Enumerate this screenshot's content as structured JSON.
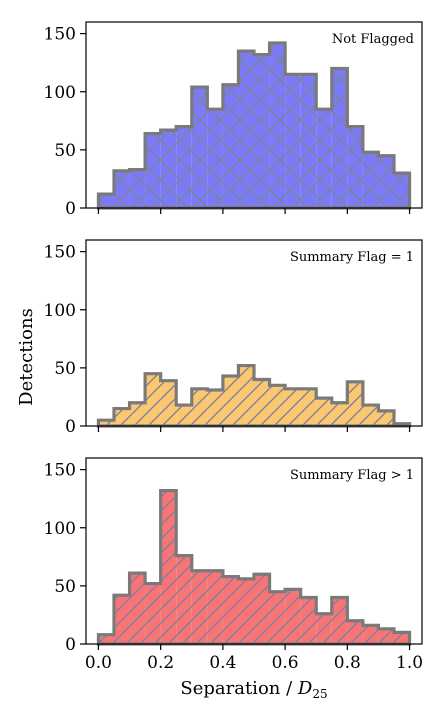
{
  "figure": {
    "ylabel": "Detections",
    "xlabel_main": "Separation / ",
    "xlabel_var": "D",
    "xlabel_sub": "25",
    "x_ticks": [
      "0.0",
      "0.2",
      "0.4",
      "0.6",
      "0.8",
      "1.0"
    ],
    "y_ticks": [
      "0",
      "50",
      "100",
      "150"
    ]
  },
  "colors": {
    "edge": "#7a7a7a",
    "hatch": "#8080a0",
    "panel1_fill": "#7b7bf7",
    "panel2_fill": "#fcc86f",
    "panel3_fill": "#f97575"
  },
  "chart_data": [
    {
      "type": "bar",
      "style": "step-histogram",
      "label": "Not Flagged",
      "hatch": "cross",
      "bin_edges": [
        0.0,
        0.05,
        0.1,
        0.15,
        0.2,
        0.25,
        0.3,
        0.35,
        0.4,
        0.45,
        0.5,
        0.55,
        0.6,
        0.65,
        0.7,
        0.75,
        0.8,
        0.85,
        0.9,
        0.95,
        1.0
      ],
      "values": [
        12,
        32,
        33,
        64,
        67,
        70,
        104,
        85,
        106,
        135,
        132,
        142,
        115,
        115,
        85,
        120,
        70,
        48,
        45,
        30
      ],
      "ylim": [
        0,
        160
      ],
      "xlim": [
        -0.04,
        1.04
      ]
    },
    {
      "type": "bar",
      "style": "step-histogram",
      "label": "Summary Flag = 1",
      "hatch": "diagonal",
      "bin_edges": [
        0.0,
        0.05,
        0.1,
        0.15,
        0.2,
        0.25,
        0.3,
        0.35,
        0.4,
        0.45,
        0.5,
        0.55,
        0.6,
        0.65,
        0.7,
        0.75,
        0.8,
        0.85,
        0.9,
        0.95,
        1.0
      ],
      "values": [
        5,
        15,
        20,
        45,
        39,
        18,
        32,
        31,
        43,
        52,
        40,
        35,
        32,
        32,
        24,
        20,
        38,
        18,
        13,
        2
      ],
      "ylim": [
        0,
        160
      ],
      "xlim": [
        -0.04,
        1.04
      ]
    },
    {
      "type": "bar",
      "style": "step-histogram",
      "label": "Summary Flag > 1",
      "hatch": "diagonal",
      "bin_edges": [
        0.0,
        0.05,
        0.1,
        0.15,
        0.2,
        0.25,
        0.3,
        0.35,
        0.4,
        0.45,
        0.5,
        0.55,
        0.6,
        0.65,
        0.7,
        0.75,
        0.8,
        0.85,
        0.9,
        0.95,
        1.0
      ],
      "values": [
        8,
        42,
        61,
        52,
        132,
        76,
        63,
        63,
        58,
        56,
        60,
        45,
        47,
        40,
        26,
        40,
        20,
        16,
        13,
        10
      ],
      "ylim": [
        0,
        160
      ],
      "xlim": [
        -0.04,
        1.04
      ]
    }
  ]
}
